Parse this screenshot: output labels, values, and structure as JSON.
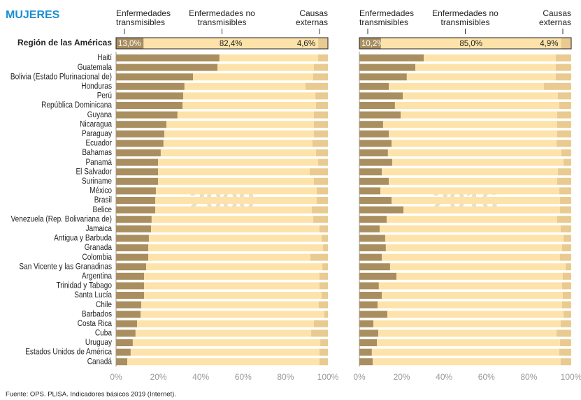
{
  "title": "MUJERES",
  "summary_label": "Región de las Américas",
  "source": "Fuente: OPS. PLISA. Indicadores básicos 2019 (Internet).",
  "chart_data": [
    {
      "type": "bar",
      "stacked": true,
      "orientation": "horizontal",
      "title": "2000",
      "categories": [
        "Haití",
        "Guatemala",
        "Bolivia (Estado Plurinacional de)",
        "Honduras",
        "Perú",
        "República Dominicana",
        "Guyana",
        "Nicaragua",
        "Paraguay",
        "Ecuador",
        "Bahamas",
        "Panamá",
        "El Salvador",
        "Suriname",
        "México",
        "Brasil",
        "Belice",
        "Venezuela (Rep. Bolivariana de)",
        "Jamaica",
        "Antigua y Barbuda",
        "Granada",
        "Colombia",
        "San Vicente y las Granadinas",
        "Argentina",
        "Trinidad y Tabago",
        "Santa Lucía",
        "Chile",
        "Barbados",
        "Costa Rica",
        "Cuba",
        "Uruguay",
        "Estados Unidos de América",
        "Canadá"
      ],
      "summary_values": [
        13.0,
        82.4,
        4.6
      ],
      "summary_value_labels": [
        "13,0%",
        "82,4%",
        "4,6%"
      ],
      "series": [
        {
          "name": "Enfermedades transmisibles",
          "color": "#a98f60",
          "values": [
            48.8,
            47.9,
            36.3,
            32.3,
            31.7,
            31.4,
            29.0,
            23.8,
            22.8,
            22.4,
            21.1,
            19.8,
            19.8,
            19.8,
            18.8,
            18.5,
            18.5,
            16.8,
            16.5,
            15.5,
            15.2,
            15.2,
            14.2,
            13.2,
            13.2,
            13.2,
            11.9,
            11.6,
            9.9,
            9.2,
            7.9,
            6.9,
            5.3
          ]
        },
        {
          "name": "Enfermedades no transmisibles",
          "color": "#fde3aa",
          "values": [
            46.6,
            45.5,
            56.7,
            57.1,
            62.4,
            63.0,
            64.4,
            69.6,
            70.6,
            70.3,
            73.3,
            75.6,
            71.6,
            73.6,
            75.9,
            76.2,
            73.9,
            76.3,
            79.5,
            81.5,
            82.5,
            76.5,
            83.2,
            82.8,
            82.8,
            83.8,
            83.8,
            86.7,
            83.5,
            82.9,
            88.5,
            89.1,
            90.7
          ]
        },
        {
          "name": "Causas externas",
          "color": "#e9ca90",
          "values": [
            4.6,
            6.6,
            7.0,
            10.6,
            5.9,
            5.6,
            6.6,
            6.6,
            6.6,
            7.3,
            5.6,
            4.6,
            8.6,
            6.6,
            5.3,
            5.3,
            7.6,
            6.9,
            4.0,
            3.0,
            2.3,
            8.3,
            2.6,
            4.0,
            4.0,
            3.0,
            4.3,
            1.7,
            6.6,
            7.9,
            3.6,
            4.0,
            4.0
          ]
        }
      ],
      "xlim": [
        0,
        100
      ],
      "xticks": [
        {
          "value": 0,
          "label": "0%"
        },
        {
          "value": 20,
          "label": "20%"
        },
        {
          "value": 40,
          "label": "40%"
        },
        {
          "value": 60,
          "label": "60%"
        },
        {
          "value": 80,
          "label": "80%"
        },
        {
          "value": 100,
          "label": "100%"
        }
      ]
    },
    {
      "type": "bar",
      "stacked": true,
      "orientation": "horizontal",
      "title": "2016",
      "summary_values": [
        10.2,
        85.0,
        4.9
      ],
      "summary_value_labels": [
        "10,2%",
        "85,0%",
        "4,9%"
      ],
      "series": [
        {
          "name": "Enfermedades transmisibles",
          "color": "#a98f60",
          "values": [
            30.4,
            26.4,
            22.4,
            13.9,
            20.5,
            16.8,
            19.5,
            11.2,
            13.9,
            15.2,
            13.5,
            15.5,
            10.6,
            13.9,
            9.9,
            15.2,
            20.8,
            12.9,
            9.6,
            12.2,
            12.5,
            10.6,
            14.5,
            17.5,
            9.2,
            10.6,
            8.6,
            13.2,
            6.6,
            8.9,
            8.3,
            5.9,
            6.3
          ]
        },
        {
          "name": "Enfermedades no transmisibles",
          "color": "#fde3aa",
          "values": [
            62.3,
            66.3,
            70.3,
            73.2,
            73.2,
            77.6,
            73.9,
            82.2,
            79.5,
            77.9,
            81.9,
            80.9,
            83.1,
            79.5,
            84.5,
            79.5,
            73.9,
            80.5,
            85.4,
            84.2,
            83.2,
            84.1,
            82.9,
            78.5,
            86.5,
            85.4,
            87.1,
            83.2,
            88.4,
            84.2,
            86.4,
            88.5,
            88.7
          ]
        },
        {
          "name": "Causas externas",
          "color": "#e9ca90",
          "values": [
            7.3,
            7.3,
            7.3,
            12.9,
            6.3,
            5.6,
            6.6,
            6.6,
            6.6,
            6.9,
            4.6,
            3.6,
            6.3,
            6.6,
            5.6,
            5.3,
            5.3,
            6.6,
            5.0,
            3.6,
            4.3,
            5.3,
            2.6,
            4.0,
            4.3,
            4.0,
            4.3,
            3.6,
            5.0,
            6.9,
            5.3,
            5.6,
            5.0
          ]
        }
      ],
      "xlim": [
        0,
        100
      ],
      "xticks": [
        {
          "value": 0,
          "label": "0%"
        },
        {
          "value": 20,
          "label": "20%"
        },
        {
          "value": 40,
          "label": "40%"
        },
        {
          "value": 60,
          "label": "60%"
        },
        {
          "value": 80,
          "label": "80%"
        },
        {
          "value": 100,
          "label": "100%"
        }
      ]
    }
  ]
}
